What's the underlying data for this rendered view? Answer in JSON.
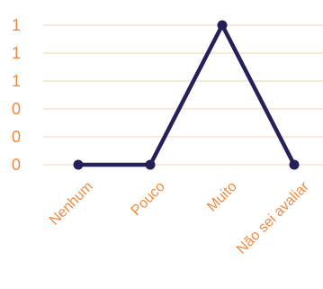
{
  "colors": {
    "line": "#24215a",
    "grid": "#f8dcc0",
    "labels": "#f08a40",
    "background": "#ffffff"
  },
  "chart_data": {
    "type": "line",
    "title": "",
    "xlabel": "",
    "ylabel": "",
    "categories": [
      "Nenhum",
      "Pouco",
      "Muito",
      "Não sei avaliar"
    ],
    "values": [
      0,
      0,
      1,
      0
    ],
    "ylim": [
      0,
      1
    ],
    "y_tick_values": [
      0,
      0.2,
      0.4,
      0.6,
      0.8,
      1.0
    ],
    "y_tick_labels": [
      "0",
      "0",
      "0",
      "1",
      "1",
      "1"
    ],
    "grid": true,
    "legend": "none",
    "markers": true
  }
}
